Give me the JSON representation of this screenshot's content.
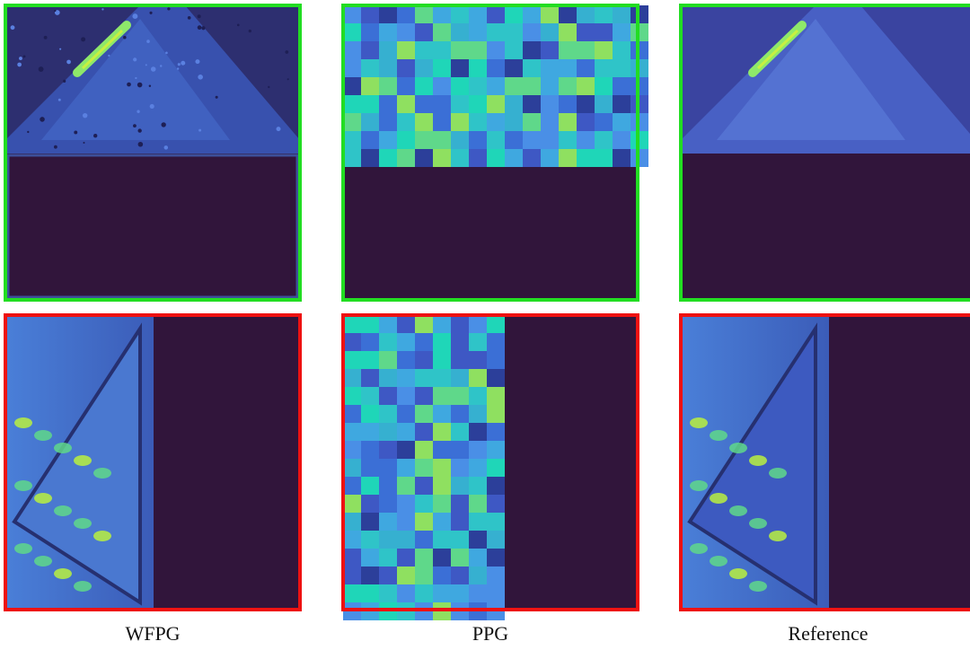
{
  "columns": [
    {
      "label": "WFPG"
    },
    {
      "label": "PPG"
    },
    {
      "label": "Reference"
    }
  ]
}
